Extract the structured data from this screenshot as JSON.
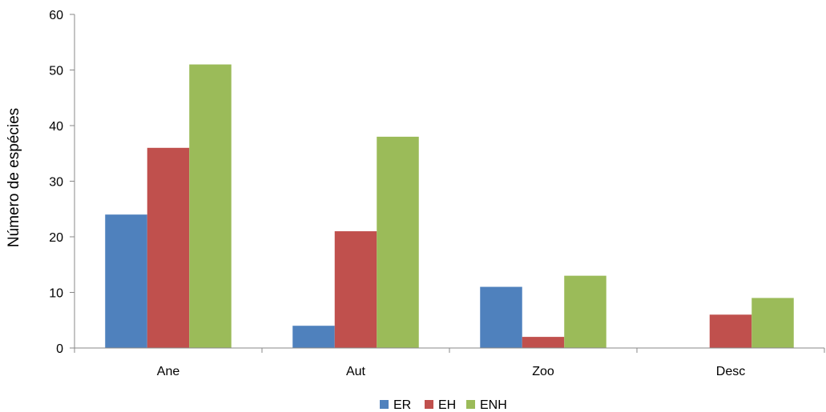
{
  "chart_data": {
    "type": "bar",
    "categories": [
      "Ane",
      "Aut",
      "Zoo",
      "Desc"
    ],
    "series": [
      {
        "name": "ER",
        "values": [
          24,
          4,
          11,
          0
        ],
        "color": "#4F81BD"
      },
      {
        "name": "EH",
        "values": [
          36,
          21,
          2,
          6
        ],
        "color": "#C0504D"
      },
      {
        "name": "ENH",
        "values": [
          51,
          38,
          13,
          9
        ],
        "color": "#9BBB59"
      }
    ],
    "ylabel": "Número de espécies",
    "ylim": [
      0,
      60
    ],
    "yticks": [
      0,
      10,
      20,
      30,
      40,
      50,
      60
    ],
    "legend_position": "bottom",
    "grid": false
  }
}
